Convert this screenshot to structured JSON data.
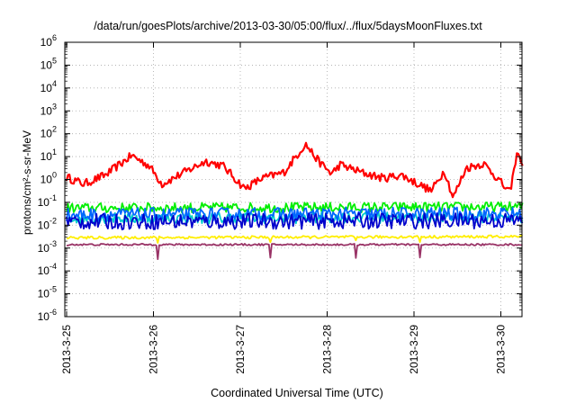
{
  "chart_data": {
    "type": "line",
    "title": "/data/run/goesPlots/archive/2013-03-30/05:00/flux/../flux/5daysMoonFluxes.txt",
    "xlabel": "Coordinated Universal Time (UTC)",
    "ylabel": "protons/cm²-s-sr-MeV",
    "yscale": "log",
    "ylim_exp": [
      -6,
      6
    ],
    "y_tick_labels": [
      "10-6",
      "10-5",
      "10-4",
      "10-3",
      "10-2",
      "10-1",
      "100",
      "101",
      "102",
      "103",
      "104",
      "105",
      "106"
    ],
    "xlim_days": [
      0,
      5.25
    ],
    "x_tick_labels": [
      "2013-3-25",
      "2013-3-26",
      "2013-3-27",
      "2013-3-28",
      "2013-3-29",
      "2013-3-30"
    ],
    "grid": true,
    "series": [
      {
        "color": "#ff0000",
        "log10_profile": [
          [
            0,
            0.1
          ],
          [
            0.2,
            -0.2
          ],
          [
            0.45,
            0.2
          ],
          [
            0.75,
            1.05
          ],
          [
            0.95,
            0.6
          ],
          [
            1.1,
            -0.2
          ],
          [
            1.3,
            0.2
          ],
          [
            1.6,
            0.8
          ],
          [
            1.8,
            0.6
          ],
          [
            2.05,
            -0.4
          ],
          [
            2.25,
            0.05
          ],
          [
            2.5,
            0.3
          ],
          [
            2.75,
            1.55
          ],
          [
            2.9,
            0.8
          ],
          [
            3.05,
            0.25
          ],
          [
            3.15,
            0.65
          ],
          [
            3.4,
            0.3
          ],
          [
            3.65,
            0.05
          ],
          [
            3.85,
            0.2
          ],
          [
            4.05,
            -0.2
          ],
          [
            4.2,
            -0.5
          ],
          [
            4.35,
            0.4
          ],
          [
            4.45,
            -0.8
          ],
          [
            4.6,
            0.5
          ],
          [
            4.8,
            0.7
          ],
          [
            4.95,
            0.1
          ],
          [
            5.1,
            -0.6
          ],
          [
            5.2,
            1.3
          ],
          [
            5.25,
            0.5
          ]
        ],
        "noise": 0.18
      },
      {
        "color": "#00ee00",
        "log10_profile": [
          [
            0,
            -1.25
          ],
          [
            5.25,
            -1.2
          ]
        ],
        "noise": 0.22
      },
      {
        "color": "#00cccc",
        "log10_profile": [
          [
            0,
            -1.7
          ],
          [
            5.25,
            -1.65
          ]
        ],
        "noise": 0.25
      },
      {
        "color": "#0066ff",
        "log10_profile": [
          [
            0,
            -1.55
          ],
          [
            5.25,
            -1.5
          ]
        ],
        "noise": 0.3
      },
      {
        "color": "#0000cc",
        "log10_profile": [
          [
            0,
            -1.85
          ],
          [
            5.25,
            -1.8
          ]
        ],
        "noise": 0.35
      },
      {
        "color": "#ffee00",
        "log10_profile": [
          [
            0,
            -2.55
          ],
          [
            5.25,
            -2.5
          ]
        ],
        "noise": 0.06
      },
      {
        "color": "#993366",
        "log10_profile": [
          [
            0,
            -2.85
          ],
          [
            5.25,
            -2.85
          ]
        ],
        "noise": 0.04
      }
    ]
  }
}
